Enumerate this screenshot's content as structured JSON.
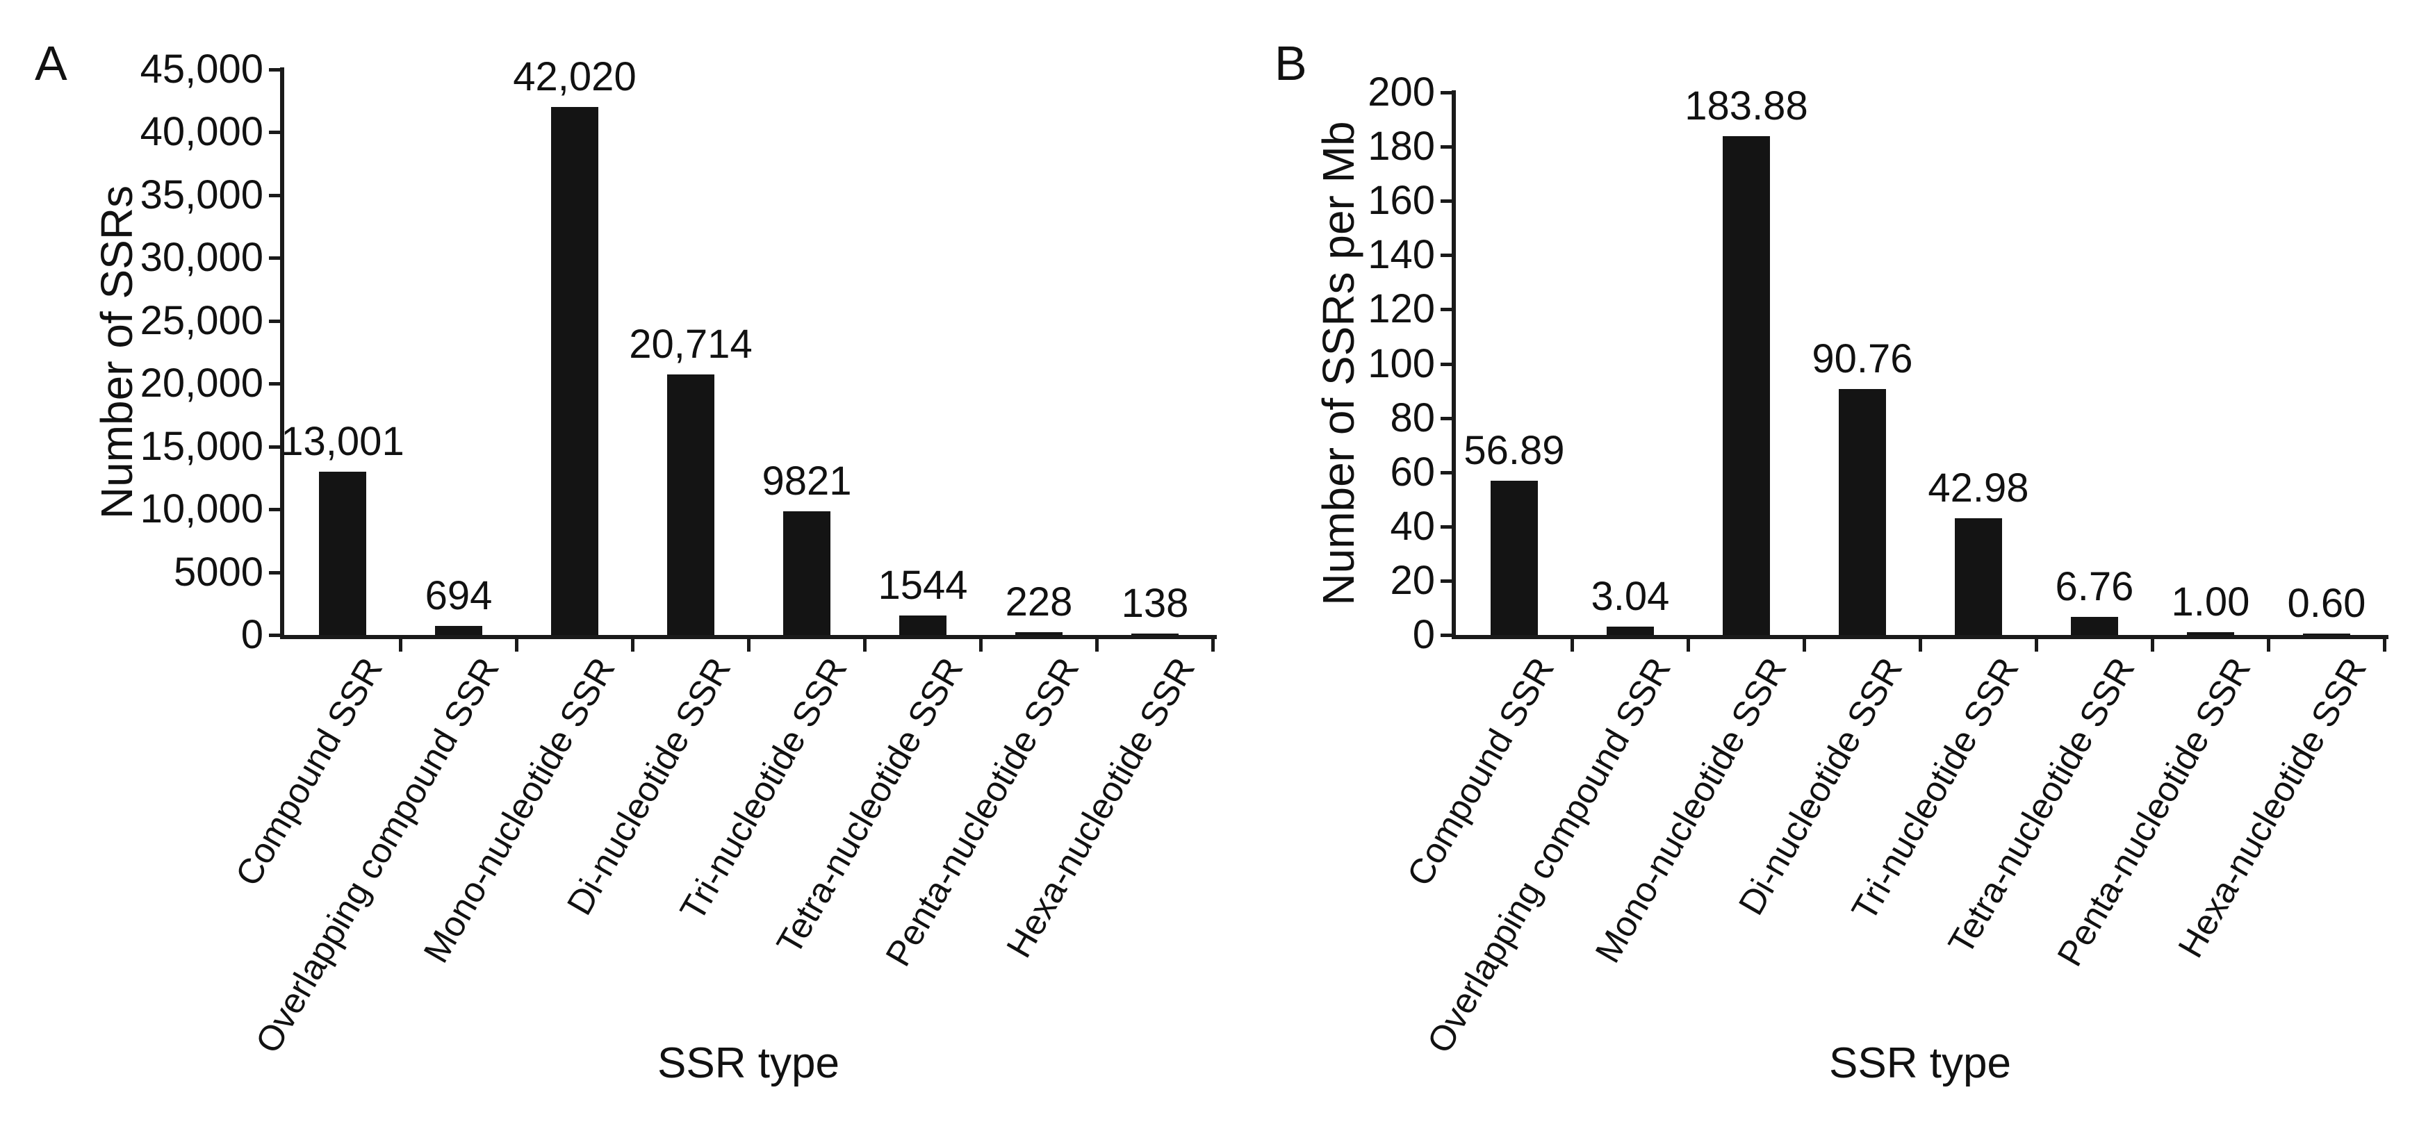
{
  "colors": {
    "background": "#ffffff",
    "ink": "#1a1a1a",
    "bar": "#141414",
    "text": "#111111"
  },
  "chart_data": [
    {
      "type": "bar",
      "panel_letter": "A",
      "title": "",
      "xlabel": "SSR type",
      "ylabel": "Number of SSRs",
      "ylim": [
        0,
        45000
      ],
      "grid": false,
      "legend": null,
      "ytick_labels_top_to_bottom": [
        "45,000",
        "40,000",
        "35,000",
        "30,000",
        "25,000",
        "20,000",
        "15,000",
        "10,000",
        "5000",
        "0"
      ],
      "categories": [
        "Compound SSR",
        "Overlapping compound SSR",
        "Mono-nucleotide SSR",
        "Di-nucleotide SSR",
        "Tri-nucleotide SSR",
        "Tetra-nucleotide SSR",
        "Penta-nucleotide SSR",
        "Hexa-nucleotide SSR"
      ],
      "values": [
        13001,
        694,
        42020,
        20714,
        9821,
        1544,
        228,
        138
      ],
      "value_labels": [
        "13,001",
        "694",
        "42,020",
        "20,714",
        "9821",
        "1544",
        "228",
        "138"
      ]
    },
    {
      "type": "bar",
      "panel_letter": "B",
      "title": "",
      "xlabel": "SSR type",
      "ylabel": "Number of SSRs per Mb",
      "ylim": [
        0,
        200
      ],
      "grid": false,
      "legend": null,
      "ytick_labels_top_to_bottom": [
        "200",
        "180",
        "160",
        "140",
        "120",
        "100",
        "80",
        "60",
        "40",
        "20",
        "0"
      ],
      "categories": [
        "Compound SSR",
        "Overlapping compound SSR",
        "Mono-nucleotide SSR",
        "Di-nucleotide SSR",
        "Tri-nucleotide SSR",
        "Tetra-nucleotide SSR",
        "Penta-nucleotide SSR",
        "Hexa-nucleotide SSR"
      ],
      "values": [
        56.89,
        3.04,
        183.88,
        90.76,
        42.98,
        6.76,
        1.0,
        0.6
      ],
      "value_labels": [
        "56.89",
        "3.04",
        "183.88",
        "90.76",
        "42.98",
        "6.76",
        "1.00",
        "0.60"
      ]
    }
  ]
}
